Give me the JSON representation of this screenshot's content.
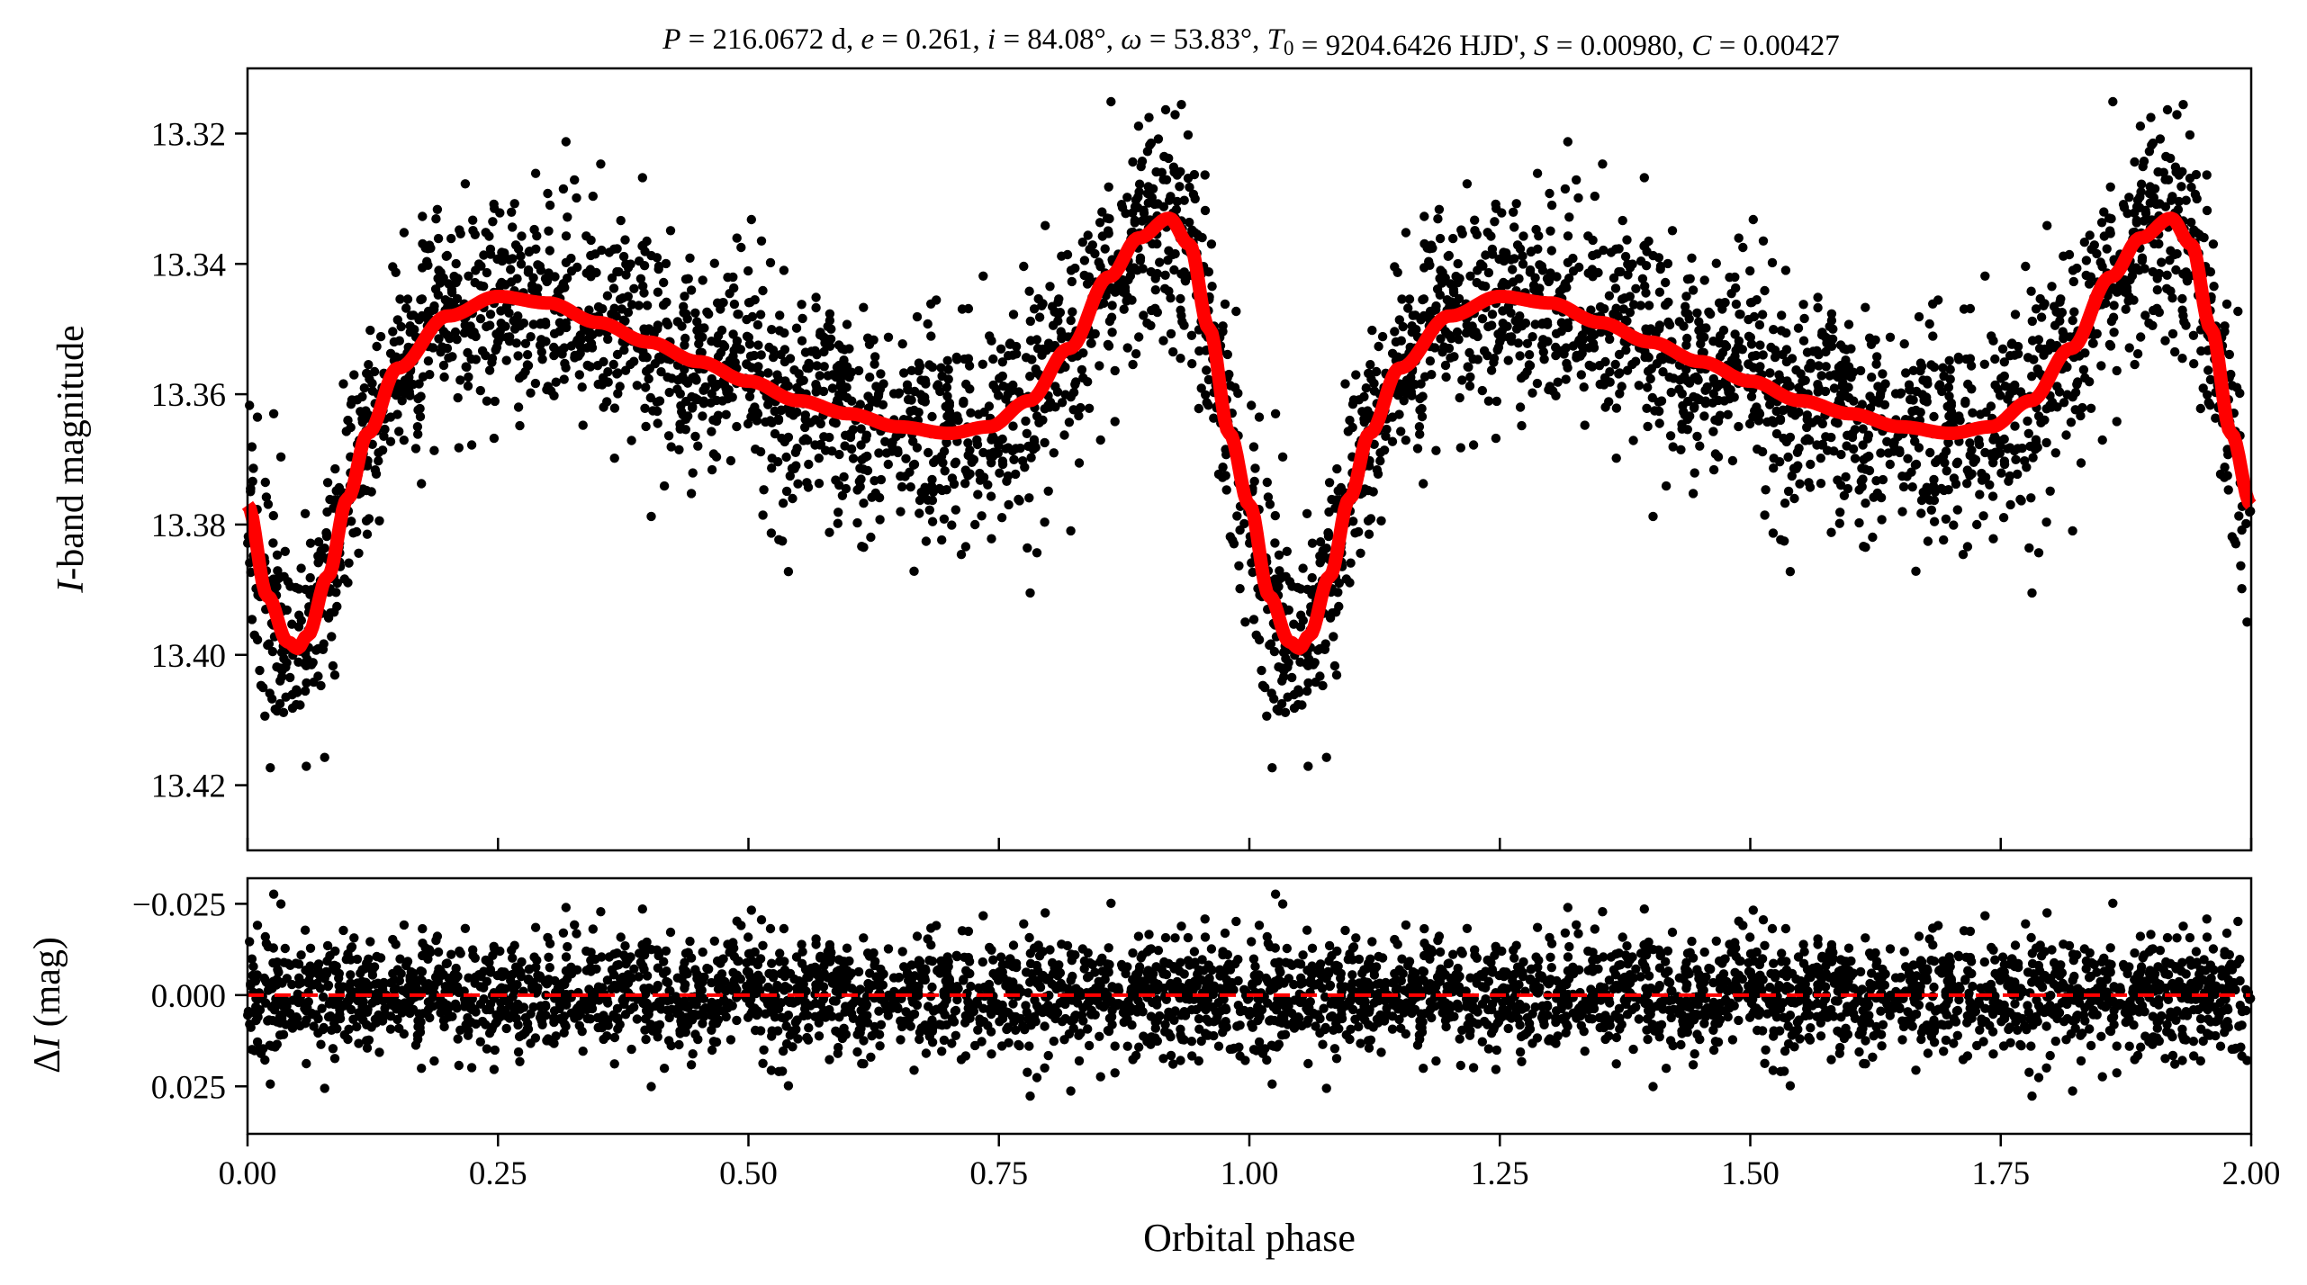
{
  "colors": {
    "points": "#000000",
    "model": "#ff0000",
    "axes": "#000000",
    "background": "#ffffff"
  },
  "title": {
    "segments": [
      {
        "text": "P",
        "italic": true
      },
      {
        "text": " = 216.0672 d, "
      },
      {
        "text": "e",
        "italic": true
      },
      {
        "text": " = 0.261, "
      },
      {
        "text": "i",
        "italic": true
      },
      {
        "text": " = 84.08°, "
      },
      {
        "text": "ω",
        "italic": true
      },
      {
        "text": " = 53.83°, "
      },
      {
        "text": "T",
        "italic": true
      },
      {
        "text": "0",
        "sub": true
      },
      {
        "text": " = 9204.6426 HJD', "
      },
      {
        "text": "S",
        "italic": true
      },
      {
        "text": " = 0.00980, "
      },
      {
        "text": "C",
        "italic": true
      },
      {
        "text": " = 0.00427"
      }
    ]
  },
  "chart_data": [
    {
      "type": "scatter",
      "panel": "light-curve",
      "xlim": [
        0.0,
        2.0
      ],
      "ylim": [
        13.43,
        13.31
      ],
      "inverted_y": true,
      "yticks": [
        13.32,
        13.34,
        13.36,
        13.38,
        13.4,
        13.42
      ],
      "ytick_labels": [
        "13.32",
        "13.34",
        "13.36",
        "13.38",
        "13.40",
        "13.42"
      ],
      "ylabel": {
        "italic": "I",
        "rest": "-band magnitude"
      },
      "model_curve_phase": [
        0.0,
        0.02,
        0.04,
        0.05,
        0.06,
        0.08,
        0.1,
        0.12,
        0.15,
        0.2,
        0.25,
        0.3,
        0.35,
        0.4,
        0.45,
        0.5,
        0.55,
        0.6,
        0.65,
        0.7,
        0.74,
        0.78,
        0.82,
        0.86,
        0.89,
        0.92,
        0.94,
        0.96,
        0.98,
        1.0
      ],
      "model_curve_mag": [
        13.377,
        13.391,
        13.398,
        13.399,
        13.397,
        13.388,
        13.376,
        13.366,
        13.356,
        13.348,
        13.345,
        13.346,
        13.349,
        13.352,
        13.355,
        13.358,
        13.361,
        13.363,
        13.365,
        13.366,
        13.365,
        13.361,
        13.353,
        13.342,
        13.336,
        13.333,
        13.337,
        13.35,
        13.366,
        13.377
      ],
      "scatter_sigma": 0.008,
      "points_per_cycle": 1900
    },
    {
      "type": "scatter",
      "panel": "residuals",
      "xlim": [
        0.0,
        2.0
      ],
      "ylim": [
        0.038,
        -0.032
      ],
      "inverted_y": true,
      "xticks": [
        0.0,
        0.25,
        0.5,
        0.75,
        1.0,
        1.25,
        1.5,
        1.75,
        2.0
      ],
      "xtick_labels": [
        "0.00",
        "0.25",
        "0.50",
        "0.75",
        "1.00",
        "1.25",
        "1.50",
        "1.75",
        "2.00"
      ],
      "yticks": [
        -0.025,
        0.0,
        0.025
      ],
      "ytick_labels": [
        "−0.025",
        "0.000",
        "0.025"
      ],
      "xlabel": "Orbital phase",
      "ylabel": {
        "prefix": "Δ",
        "italic": "I",
        "rest": " (mag)"
      },
      "zero_line": 0.0,
      "residual_sigma": 0.0075
    }
  ]
}
